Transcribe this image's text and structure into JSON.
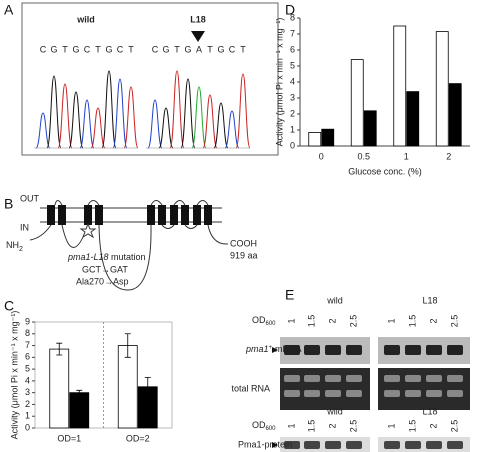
{
  "panel_a": {
    "label": "A",
    "samples": [
      {
        "name": "wild",
        "sequence": [
          "C",
          "G",
          "T",
          "G",
          "C",
          "T",
          "G",
          "C",
          "T"
        ]
      },
      {
        "name": "L18",
        "sequence": [
          "C",
          "G",
          "T",
          "G",
          "A",
          "T",
          "G",
          "C",
          "T"
        ]
      }
    ]
  },
  "panel_b": {
    "label": "B",
    "out": "OUT",
    "in": "IN",
    "nh": "NH",
    "nh_sub": "2",
    "cooh": "COOH",
    "length": "919 aa",
    "mutation": "pma1-L18",
    "mutation_suffix": " mutation",
    "codon": "GCT→GAT",
    "residue": "Ala270→Asp"
  },
  "chart_data": [
    {
      "type": "bar",
      "label": "C",
      "ylabel": "Activity (μmol Pi x min⁻¹ x mg⁻¹)",
      "categories": [
        "OD=1",
        "OD=2"
      ],
      "series": [
        {
          "color": "#ffffff",
          "values": [
            6.7,
            7.0
          ],
          "errors": [
            0.5,
            1.0
          ]
        },
        {
          "color": "#000000",
          "values": [
            3.0,
            3.5
          ],
          "errors": [
            0.2,
            0.8
          ]
        }
      ],
      "ylim": [
        0,
        9
      ],
      "yticks": [
        0,
        1,
        2,
        3,
        4,
        5,
        6,
        7,
        8,
        9
      ]
    },
    {
      "type": "bar",
      "label": "D",
      "ylabel": "Activity (μmol Pi x min⁻¹ x mg⁻¹)",
      "xlabel": "Glucose conc. (%)",
      "categories": [
        "0",
        "0.5",
        "1",
        "2"
      ],
      "series": [
        {
          "color": "#ffffff",
          "values": [
            0.85,
            5.4,
            7.5,
            7.15
          ]
        },
        {
          "color": "#000000",
          "values": [
            1.05,
            2.2,
            3.4,
            3.9
          ]
        }
      ],
      "ylim": [
        0,
        8
      ],
      "yticks": [
        0,
        1,
        2,
        3,
        4,
        5,
        6,
        7,
        8
      ]
    }
  ],
  "panel_e": {
    "label": "E",
    "strains": [
      "wild",
      "L18"
    ],
    "od": "OD",
    "od_sub": "600",
    "od_values": [
      "1",
      "1.5",
      "2",
      "2.5"
    ],
    "mrna": "pma1",
    "mrna_sup": "+",
    "mrna_suffix": "-mRNA",
    "total_rna": "total RNA",
    "protein": "Pma1-protein"
  }
}
